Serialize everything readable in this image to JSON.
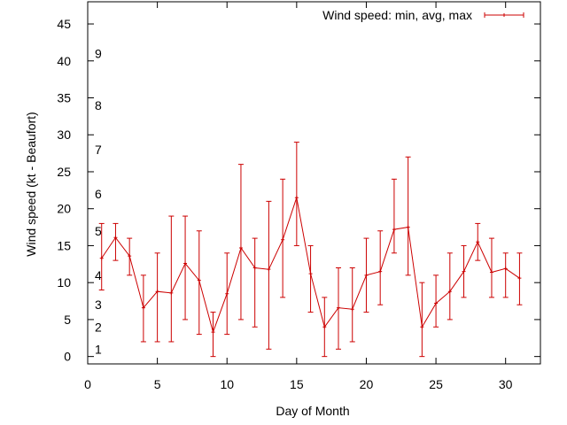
{
  "chart_data": {
    "type": "line",
    "xlabel": "Day of Month",
    "ylabel": "Wind speed (kt - Beaufort)",
    "xlim": [
      0,
      32.5
    ],
    "ylim": [
      -1,
      48
    ],
    "x_ticks": [
      0,
      5,
      10,
      15,
      20,
      25,
      30
    ],
    "y_ticks": [
      0,
      5,
      10,
      15,
      20,
      25,
      30,
      35,
      40,
      45
    ],
    "beaufort_labels": [
      {
        "label": "1",
        "kt": 1
      },
      {
        "label": "2",
        "kt": 4
      },
      {
        "label": "3",
        "kt": 7
      },
      {
        "label": "4",
        "kt": 11
      },
      {
        "label": "5",
        "kt": 17
      },
      {
        "label": "6",
        "kt": 22
      },
      {
        "label": "7",
        "kt": 28
      },
      {
        "label": "8",
        "kt": 34
      },
      {
        "label": "9",
        "kt": 41
      }
    ],
    "grid": false,
    "legend_position": "top-right",
    "series": [
      {
        "name": "Wind speed: min, avg, max",
        "color": "#cc0000",
        "x": [
          1,
          2,
          3,
          4,
          5,
          6,
          7,
          8,
          9,
          10,
          11,
          12,
          13,
          14,
          15,
          16,
          17,
          18,
          19,
          20,
          21,
          22,
          23,
          24,
          25,
          26,
          27,
          28,
          29,
          30,
          31
        ],
        "avg": [
          13.3,
          16.1,
          13.6,
          6.6,
          8.8,
          8.6,
          12.6,
          10.3,
          3.3,
          8.5,
          14.7,
          12.0,
          11.8,
          15.8,
          21.5,
          11.2,
          4.0,
          6.6,
          6.4,
          11.0,
          11.5,
          17.2,
          17.5,
          4.0,
          7.2,
          8.8,
          11.5,
          15.5,
          11.4,
          11.9,
          10.6
        ],
        "min": [
          9,
          13,
          11,
          2,
          2,
          2,
          5,
          3,
          0,
          3,
          5,
          4,
          1,
          8,
          15,
          6,
          0,
          1,
          2,
          6,
          7,
          14,
          11,
          0,
          4,
          5,
          8,
          13,
          8,
          8,
          7
        ],
        "max": [
          18,
          18,
          16,
          11,
          14,
          19,
          19,
          17,
          6,
          14,
          26,
          16,
          21,
          24,
          29,
          15,
          8,
          12,
          12,
          16,
          17,
          24,
          27,
          10,
          11,
          14,
          15,
          18,
          16,
          14,
          14
        ]
      }
    ]
  }
}
